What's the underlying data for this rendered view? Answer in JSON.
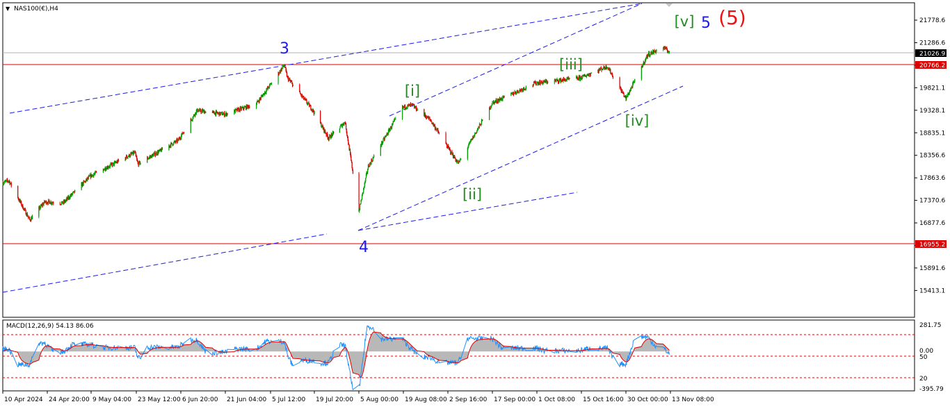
{
  "header": {
    "symbol_label": "NAS100(€),H4"
  },
  "price_axis": {
    "ticks": [
      "21778.6",
      "21286.6",
      "20314.1",
      "19821.1",
      "19328.1",
      "18835.1",
      "18356.6",
      "17863.6",
      "17370.6",
      "16877.6",
      "16384.6",
      "15891.6",
      "15413.1"
    ]
  },
  "price_levels": {
    "current": {
      "label": "21026.9",
      "color": "#000000"
    },
    "resistance": {
      "label": "20766.2",
      "color": "#dd0000"
    },
    "support": {
      "label": "16955.2",
      "color": "#dd0000"
    }
  },
  "wave_labels": [
    {
      "text": "3",
      "color": "#1a1aee"
    },
    {
      "text": "4",
      "color": "#1a1aee"
    },
    {
      "text": "5",
      "color": "#1a1aee"
    },
    {
      "text": "(5)",
      "color": "#ee1111"
    },
    {
      "text": "[i]",
      "color": "#228b22"
    },
    {
      "text": "[ii]",
      "color": "#228b22"
    },
    {
      "text": "[iii]",
      "color": "#228b22"
    },
    {
      "text": "[iv]",
      "color": "#228b22"
    },
    {
      "text": "[v]",
      "color": "#228b22"
    }
  ],
  "macd": {
    "title": "MACD(12,26,9) 54.13 86.06",
    "ticks": [
      "281.75",
      "0.00",
      "50",
      "20",
      "-395.79"
    ]
  },
  "time_axis": {
    "ticks": [
      "10 Apr 2024",
      "24 Apr 20:00",
      "9 May 04:00",
      "23 May 12:00",
      "6 Jun 20:00",
      "21 Jun 04:00",
      "5 Jul 12:00",
      "19 Jul 20:00",
      "5 Aug 00:00",
      "19 Aug 08:00",
      "2 Sep 16:00",
      "17 Sep 00:00",
      "1 Oct 08:00",
      "15 Oct 16:00",
      "30 Oct 00:00",
      "13 Nov 08:00"
    ]
  },
  "chart_data": [
    {
      "type": "candlestick",
      "symbol": "NAS100(€)",
      "timeframe": "H4",
      "up_color": "#00a000",
      "down_color": "#dd0000",
      "x_start": "10 Apr 2024",
      "x_end": "13 Nov 2024",
      "anchors": [
        {
          "date": "10 Apr 2024",
          "close": 17950
        },
        {
          "date": "12 Apr 2024",
          "close": 18000
        },
        {
          "date": "19 Apr 2024",
          "close": 17070
        },
        {
          "date": "24 Apr 2024",
          "close": 17500
        },
        {
          "date": "30 Apr 2024",
          "close": 17470
        },
        {
          "date": "9 May 2024",
          "close": 18110
        },
        {
          "date": "23 May 2024",
          "close": 18660
        },
        {
          "date": "24 May 2024",
          "close": 18390
        },
        {
          "date": "6 Jun 2024",
          "close": 18950
        },
        {
          "date": "12 Jun 2024",
          "close": 19650
        },
        {
          "date": "21 Jun 2024",
          "close": 19560
        },
        {
          "date": "1 Jul 2024",
          "close": 19810
        },
        {
          "date": "10 Jul 2024",
          "close": 20720
        },
        {
          "date": "11 Jul 2024",
          "close": 20420
        },
        {
          "date": "19 Jul 2024",
          "close": 19690
        },
        {
          "date": "25 Jul 2024",
          "close": 19000
        },
        {
          "date": "31 Jul 2024",
          "close": 19380
        },
        {
          "date": "5 Aug 2024",
          "close": 17280
        },
        {
          "date": "8 Aug 2024",
          "close": 18330
        },
        {
          "date": "19 Aug 2024",
          "close": 19720
        },
        {
          "date": "22 Aug 2024",
          "close": 19780
        },
        {
          "date": "28 Aug 2024",
          "close": 19430
        },
        {
          "date": "6 Sep 2024",
          "close": 18400
        },
        {
          "date": "17 Sep 2024",
          "close": 19830
        },
        {
          "date": "1 Oct 2024",
          "close": 20300
        },
        {
          "date": "15 Oct 2024",
          "close": 20410
        },
        {
          "date": "24 Oct 2024",
          "close": 20690
        },
        {
          "date": "30 Oct 2024",
          "close": 19930
        },
        {
          "date": "6 Nov 2024",
          "close": 20960
        },
        {
          "date": "11 Nov 2024",
          "close": 21140
        },
        {
          "date": "13 Nov 2024",
          "close": 21027
        }
      ],
      "ylim": [
        15413.1,
        22000
      ]
    },
    {
      "type": "macd",
      "params": "12,26,9",
      "main": 54.13,
      "signal": 86.06,
      "main_color": "#1e90ff",
      "signal_color": "#dd0000",
      "histogram_color": "#b8b8b8",
      "ylim": [
        -395.79,
        281.75
      ]
    }
  ]
}
